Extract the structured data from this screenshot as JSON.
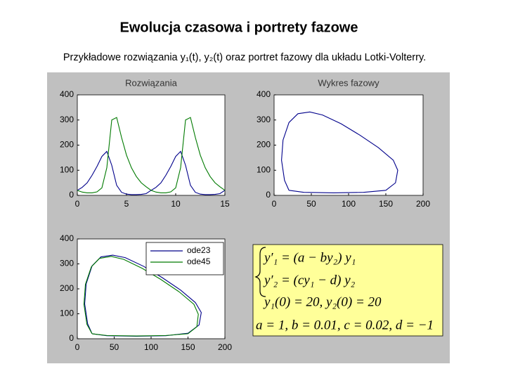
{
  "header": {
    "title": "Ewolucja czasowa i portrety fazowe",
    "subtitle": "Przykładowe rozwiązania y₁(t), y₂(t) oraz portret fazowy dla układu Lotki-Volterry."
  },
  "chart_data": [
    {
      "type": "line",
      "title": "Rozwiązania",
      "x": [
        0,
        0.5,
        1,
        1.5,
        2,
        2.5,
        3,
        3.5,
        4,
        4.5,
        5,
        5.5,
        6,
        6.5,
        7,
        7.5,
        8,
        8.5,
        9,
        9.5,
        10,
        10.5,
        11,
        11.5,
        12,
        12.5,
        13,
        13.5,
        14,
        14.5,
        15
      ],
      "series": [
        {
          "color": "#00008b",
          "values": [
            20,
            32,
            50,
            80,
            115,
            155,
            175,
            120,
            40,
            12,
            5,
            3,
            3,
            4,
            7,
            20,
            32,
            50,
            80,
            115,
            155,
            175,
            120,
            40,
            12,
            5,
            3,
            3,
            4,
            7,
            20
          ]
        },
        {
          "color": "#007a00",
          "values": [
            20,
            13,
            10,
            10,
            14,
            30,
            110,
            300,
            310,
            230,
            160,
            110,
            75,
            50,
            34,
            20,
            13,
            10,
            10,
            14,
            30,
            110,
            300,
            310,
            230,
            160,
            110,
            75,
            50,
            34,
            20
          ]
        }
      ],
      "xlim": [
        0,
        15
      ],
      "xticks": [
        0,
        5,
        10,
        15
      ],
      "ylim": [
        0,
        400
      ],
      "yticks": [
        0,
        100,
        200,
        300,
        400
      ]
    },
    {
      "type": "line",
      "title": "Wykres fazowy",
      "series": [
        {
          "color": "#00008b",
          "x": [
            20,
            40,
            80,
            120,
            150,
            163,
            166,
            160,
            140,
            115,
            90,
            65,
            48,
            32,
            20,
            12,
            10,
            14,
            20
          ],
          "values": [
            20,
            12,
            10,
            12,
            20,
            50,
            100,
            140,
            190,
            240,
            285,
            320,
            332,
            325,
            290,
            220,
            140,
            60,
            20
          ]
        }
      ],
      "xlim": [
        0,
        200
      ],
      "xticks": [
        0,
        50,
        100,
        150,
        200
      ],
      "ylim": [
        0,
        400
      ],
      "yticks": [
        0,
        100,
        200,
        300,
        400
      ]
    },
    {
      "type": "line",
      "legend": "upper right",
      "series": [
        {
          "name": "ode23",
          "color": "#00008b",
          "x": [
            20,
            40,
            80,
            120,
            150,
            165,
            168,
            160,
            140,
            115,
            90,
            65,
            48,
            32,
            20,
            12,
            10,
            14,
            20
          ],
          "values": [
            20,
            12,
            10,
            12,
            22,
            55,
            105,
            145,
            195,
            245,
            290,
            325,
            335,
            328,
            292,
            220,
            140,
            60,
            20
          ]
        },
        {
          "name": "ode45",
          "color": "#007a00",
          "x": [
            20,
            40,
            80,
            120,
            150,
            162,
            164,
            158,
            138,
            113,
            88,
            63,
            46,
            30,
            19,
            11,
            9,
            13,
            20
          ],
          "values": [
            20,
            13,
            11,
            13,
            20,
            48,
            98,
            138,
            188,
            238,
            282,
            318,
            330,
            322,
            288,
            218,
            138,
            58,
            20
          ]
        }
      ],
      "xlim": [
        0,
        200
      ],
      "xticks": [
        0,
        50,
        100,
        150,
        200
      ],
      "ylim": [
        0,
        400
      ],
      "yticks": [
        0,
        100,
        200,
        300,
        400
      ]
    }
  ],
  "equations": {
    "lines": [
      "y′₁ = (a − by₂) y₁",
      "y′₂ = (cy₁ − d) y₂",
      "y₁(0) = 20,  y₂(0) = 20",
      "a = 1, b = 0.01, c = 0.02, d = −1"
    ]
  }
}
